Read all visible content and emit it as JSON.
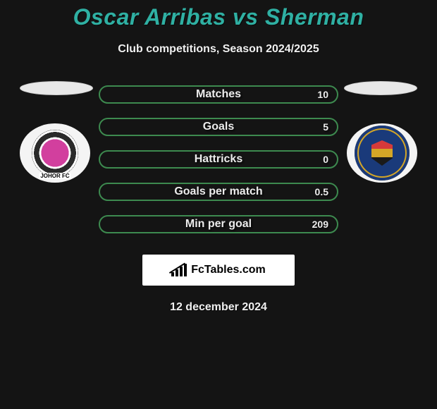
{
  "title": "Oscar Arribas vs Sherman",
  "subtitle": "Club competitions, Season 2024/2025",
  "date": "12 december 2024",
  "brand_text": "FcTables.com",
  "title_color": "#2fb0a3",
  "bar_border_color": "#3d8a4f",
  "left_flag_bg": "#e8e8e8",
  "right_flag_bg": "#e8e8e8",
  "bars": [
    {
      "label": "Matches",
      "value": "10"
    },
    {
      "label": "Goals",
      "value": "5"
    },
    {
      "label": "Hattricks",
      "value": "0"
    },
    {
      "label": "Goals per match",
      "value": "0.5"
    },
    {
      "label": "Min per goal",
      "value": "209"
    }
  ]
}
